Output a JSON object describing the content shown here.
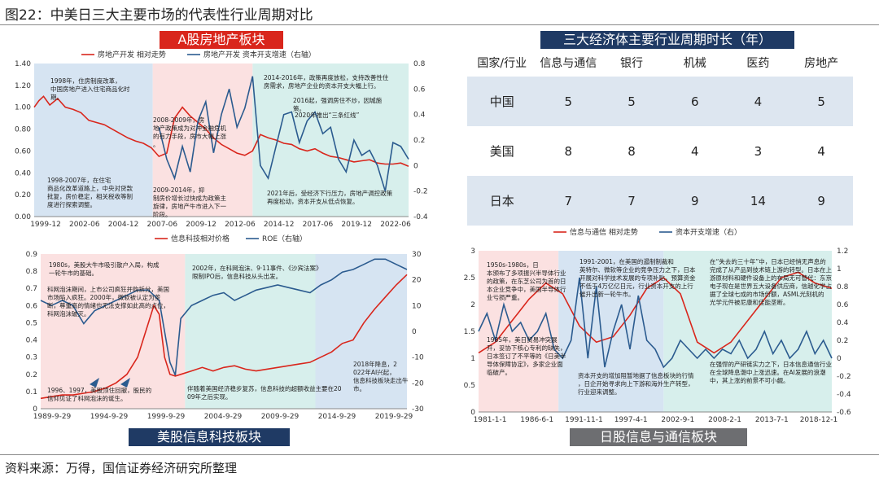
{
  "figure": {
    "title": "图22：中美日三大主要市场的代表性行业周期对比",
    "source": "资料来源：万得，国信证券经济研究所整理"
  },
  "colors": {
    "red": "#d9261c",
    "blue": "#2b5b8f",
    "bg_blue": "#d6e4f2",
    "bg_pink": "#fbe1e1",
    "bg_teal": "#d7efec"
  },
  "chart_data": [
    {
      "id": "a_share_real_estate",
      "type": "line",
      "banner": "A股房地产板块",
      "legend": [
        "房地产开发 相对走势",
        "房地产开发 资本开支增速（右轴）"
      ],
      "x_ticks": [
        "1999-12",
        "2002-06",
        "2004-12",
        "2007-06",
        "2009-12",
        "2012-06",
        "2014-12",
        "2017-06",
        "2019-12",
        "2022-06"
      ],
      "y_left_ticks": [
        "1.40",
        "1.20",
        "1.00",
        "0.80",
        "0.60",
        "0.40",
        "0.20",
        "0.00"
      ],
      "y_right_ticks": [
        "0.8",
        "0.6",
        "0.4",
        "0.2",
        "0",
        "-0.2",
        "-0.4"
      ],
      "ylim_left": [
        0,
        1.4
      ],
      "ylim_right": [
        -0.4,
        0.8
      ],
      "x_range": [
        0,
        24
      ],
      "series": [
        {
          "name": "房地产开发 相对走势",
          "axis": "left",
          "x": [
            0,
            0.3,
            0.6,
            1,
            1.5,
            2,
            2.5,
            3,
            3.5,
            4,
            4.5,
            5,
            5.5,
            6,
            6.5,
            7,
            7.5,
            8,
            8.5,
            9,
            9.5,
            10,
            10.5,
            11,
            11.5,
            12,
            12.5,
            13,
            13.5,
            14,
            14.5,
            15,
            15.5,
            16,
            16.5,
            17,
            17.5,
            18,
            18.5,
            19,
            19.5,
            20,
            20.5,
            21,
            21.5,
            22,
            22.5,
            23,
            23.5,
            24
          ],
          "y": [
            1.0,
            1.06,
            1.1,
            1.02,
            1.08,
            1.0,
            0.98,
            0.95,
            0.88,
            0.86,
            0.84,
            0.8,
            0.76,
            0.72,
            0.69,
            0.67,
            0.63,
            0.55,
            0.58,
            0.9,
            1.0,
            0.92,
            0.86,
            0.8,
            0.72,
            0.66,
            0.62,
            0.58,
            0.56,
            0.6,
            0.75,
            0.72,
            0.7,
            0.67,
            0.66,
            0.62,
            0.6,
            0.62,
            0.58,
            0.55,
            0.54,
            0.52,
            0.5,
            0.51,
            0.52,
            0.49,
            0.48,
            0.48,
            0.49,
            0.46
          ]
        },
        {
          "name": "房地产开发 资本开支增速（右轴）",
          "axis": "right",
          "x": [
            8,
            8.5,
            9,
            9.5,
            10,
            10.5,
            11,
            11.5,
            12,
            12.5,
            13,
            13.5,
            14,
            14.5,
            15,
            15.5,
            16,
            16.5,
            17,
            17.5,
            18,
            18.5,
            19,
            19.5,
            20,
            20.5,
            21,
            21.5,
            22,
            22.5,
            23,
            23.5,
            24
          ],
          "y": [
            0.3,
            0.05,
            -0.1,
            0.15,
            -0.05,
            0.35,
            0.5,
            0.1,
            0.4,
            0.6,
            0.3,
            0.45,
            0.7,
            0.0,
            -0.1,
            0.15,
            0.4,
            0.42,
            0.18,
            0.35,
            0.42,
            0.25,
            0.3,
            0.05,
            -0.05,
            0.2,
            0.08,
            0.12,
            0.0,
            -0.2,
            0.18,
            0.15,
            0.05
          ]
        }
      ],
      "annotations": [
        "1998年，住房制度改革，中国房地产进入住宅商品化时期。",
        "1998-2007年，在住宅商品化改革道路上，中央对贷款批复，房价稳定，相关税收等制度进行探索调整。",
        "2008-2009年，房地产政策成为对冲金融危机的有力手段，房市大幅上涨。",
        "2009-2014年，抑制房价增长过快成为政策主旋律，房地产牛市进入下一阶段。",
        "2014-2016年，政策再度放松，支持改善性住房需求，房地产企业的资本开支大幅上行。",
        "2016起，强调房住不炒，因城施策。",
        "2020年推出“三条红线”",
        "2021年后，受经济下行压力，房地产调控政策再度松动，资本开支从低点恢复。"
      ]
    },
    {
      "id": "us_it_sector",
      "type": "line",
      "banner": "美股信息科技板块",
      "legend": [
        "信息科技相对价格",
        "ROE（右轴）"
      ],
      "x_ticks": [
        "1989-9-29",
        "1994-9-29",
        "1999-9-29",
        "2004-9-29",
        "2009-9-29",
        "2014-9-29",
        "2019-9-29"
      ],
      "y_left_ticks": [
        "0.9",
        "0.8",
        "0.7",
        "0.6",
        "0.5",
        "0.4",
        "0.3",
        "0.2",
        "0.1",
        "0"
      ],
      "y_right_ticks": [
        "30",
        "20",
        "10",
        "0",
        "-10",
        "-20",
        "-30"
      ],
      "ylim_left": [
        0,
        0.9
      ],
      "ylim_right": [
        -30,
        30
      ],
      "x_range": [
        0,
        34
      ],
      "series": [
        {
          "name": "信息科技相对价格",
          "axis": "left",
          "x": [
            0,
            1,
            2,
            3,
            4,
            5,
            6,
            7,
            8,
            9,
            10,
            10.5,
            11,
            11.5,
            12,
            12.5,
            13,
            14,
            15,
            16,
            17,
            18,
            19,
            20,
            21,
            22,
            23,
            24,
            25,
            26,
            27,
            28,
            29,
            30,
            31,
            32,
            33,
            34
          ],
          "y": [
            0.06,
            0.07,
            0.08,
            0.08,
            0.09,
            0.1,
            0.12,
            0.15,
            0.2,
            0.3,
            0.5,
            0.6,
            0.55,
            0.3,
            0.2,
            0.19,
            0.2,
            0.22,
            0.24,
            0.22,
            0.24,
            0.25,
            0.23,
            0.22,
            0.23,
            0.24,
            0.25,
            0.26,
            0.27,
            0.3,
            0.33,
            0.38,
            0.4,
            0.5,
            0.58,
            0.65,
            0.72,
            0.78
          ]
        },
        {
          "name": "ROE（右轴）",
          "axis": "right",
          "x": [
            0,
            1,
            2,
            3,
            4,
            5,
            6,
            7,
            8,
            9,
            10,
            11,
            11.5,
            12,
            12.5,
            13,
            14,
            15,
            16,
            17,
            18,
            19,
            20,
            21,
            22,
            23,
            24,
            25,
            26,
            27,
            28,
            29,
            30,
            31,
            32,
            33,
            34
          ],
          "y": [
            12,
            10,
            12,
            10,
            3,
            8,
            10,
            12,
            14,
            16,
            16,
            12,
            0,
            -12,
            -17,
            5,
            10,
            12,
            14,
            15,
            12,
            14,
            16,
            17,
            18,
            17,
            16,
            15,
            18,
            20,
            23,
            24,
            26,
            28,
            28,
            26,
            24
          ]
        }
      ],
      "annotations": [
        "1980s，美股大牛市吸引散户入局，构成一轮牛市的基础。",
        "科网泡沫期间，上市公司疯狂并购拆分，美国市场陷入疯狂。2000年，微软被认定为垄断，尊重高的情绪也无法支撑如此高的点位，科网泡沫破灭。",
        "1996、1997，美股顶住回撤，股民的信仰见证了科网泡沫的诞生。",
        "2002年，在科网泡沫、9·11事件、《沙宾法案》限制IPO后，信息科技从头出发。",
        "伴随着美国经济稳步复苏，信息科技的超额收益主要在2009年之后实现。",
        "2018年降息，2022年AI兴起，信息科技板块走出牛市。"
      ]
    },
    {
      "id": "cycle_table",
      "type": "table",
      "banner": "三大经济体主要行业周期时长（年）",
      "columns": [
        "国家/行业",
        "信息与通信",
        "银行",
        "机械",
        "医药",
        "房地产"
      ],
      "rows": [
        [
          "中国",
          "5",
          "5",
          "6",
          "4",
          "5"
        ],
        [
          "美国",
          "8",
          "8",
          "4",
          "3",
          "4"
        ],
        [
          "日本",
          "7",
          "7",
          "9",
          "14",
          "9"
        ]
      ]
    },
    {
      "id": "jp_it_sector",
      "type": "line",
      "banner": "日股信息与通信板块",
      "legend": [
        "信息与通信 相对走势",
        "资本开支增速（右）"
      ],
      "x_ticks": [
        "1981-1-1",
        "1986-6-1",
        "1991-11-1",
        "1997-4-1",
        "2002-9-1",
        "2008-2-1",
        "2013-7-1",
        "2018-12-1"
      ],
      "y_left_ticks": [
        "3",
        "2.5",
        "2",
        "1.5",
        "1",
        "0.5",
        "0"
      ],
      "y_right_ticks": [
        "1.2",
        "1",
        "0.8",
        "0.6",
        "0.4",
        "0.2",
        "0",
        "-0.2",
        "-0.4",
        "-0.6"
      ],
      "ylim_left": [
        0,
        3
      ],
      "ylim_right": [
        -0.6,
        1.2
      ],
      "x_range": [
        0,
        42
      ],
      "series": [
        {
          "name": "信息与通信 相对走势",
          "axis": "left",
          "x": [
            0,
            2,
            4,
            6,
            8,
            10,
            12,
            14,
            16,
            18,
            20,
            22,
            24,
            26,
            28,
            30,
            32,
            34,
            36,
            38,
            40,
            42
          ],
          "y": [
            1.1,
            1.3,
            1.7,
            2.1,
            2.4,
            2.2,
            1.6,
            1.3,
            1.4,
            1.8,
            2.3,
            2.5,
            2.2,
            1.3,
            1.1,
            1.3,
            1.7,
            2.1,
            2.5,
            2.6,
            2.4,
            2.3
          ]
        },
        {
          "name": "资本开支增速（右）",
          "axis": "right",
          "x": [
            0,
            1,
            2,
            3,
            4,
            5,
            6,
            7,
            8,
            9,
            10,
            11,
            12,
            13,
            14,
            15,
            16,
            17,
            18,
            19,
            20,
            21,
            22,
            23,
            24,
            25,
            26,
            27,
            28,
            29,
            30,
            31,
            32,
            33,
            34,
            35,
            36,
            37,
            38,
            39,
            40,
            41,
            42
          ],
          "y": [
            0.3,
            0.5,
            0.2,
            0.6,
            0.3,
            0.4,
            0.2,
            0.3,
            0.5,
            0.1,
            0.0,
            0.2,
            0.9,
            0.0,
            0.8,
            -0.1,
            0.3,
            0.6,
            0.1,
            0.7,
            0.2,
            0.1,
            -0.1,
            0.0,
            0.2,
            0.1,
            0.0,
            0.1,
            0.0,
            0.1,
            0.05,
            0.2,
            0.0,
            0.1,
            0.3,
            0.05,
            0.2,
            0.0,
            0.1,
            0.3,
            0.05,
            0.2,
            0.0
          ]
        }
      ],
      "annotations": [
        "1950s-1980s，日本颁布了多项振兴半导体行业的政策，在东芝公司为首的日本企业竞争中，美国半导体行业亏损严重。",
        "1985年，美日贸易冲突展开，妥协下核心专利的缺失，日本签订了不平等的《日美半导体保障协定》，多家企业面临破产。",
        "1991-2001，在美国的遏制制裁和英特尔、微软等企业的竞争压力之下，日本开展对科学技术发展的专项补贴，预算资金不低于4万亿亿日元，行业资本开支的上行催升出新一轮牛市。",
        "资本开支的增加阻暂地据了信息板块的行情，日企开始寻求向上下游和海外生产转型，行业迎来调整。",
        "在“失去的三十年”中，日本已经悄无声息的完成了从产品到技术链上游的转型。日本在上游原材料和硬件设备上的布局无可替代：东京电子现在是世界五大设备供应商，信越化学占据了全球七成的市场份额，ASML光刻机的光学元件被尼康和佳能垄断。",
        "在强悍的产研链实力之下，日本信息通信行业在全球降息潮中上涨迅速。在AI发展的浪潮中，其上涨的前景不可小觑。"
      ]
    }
  ]
}
